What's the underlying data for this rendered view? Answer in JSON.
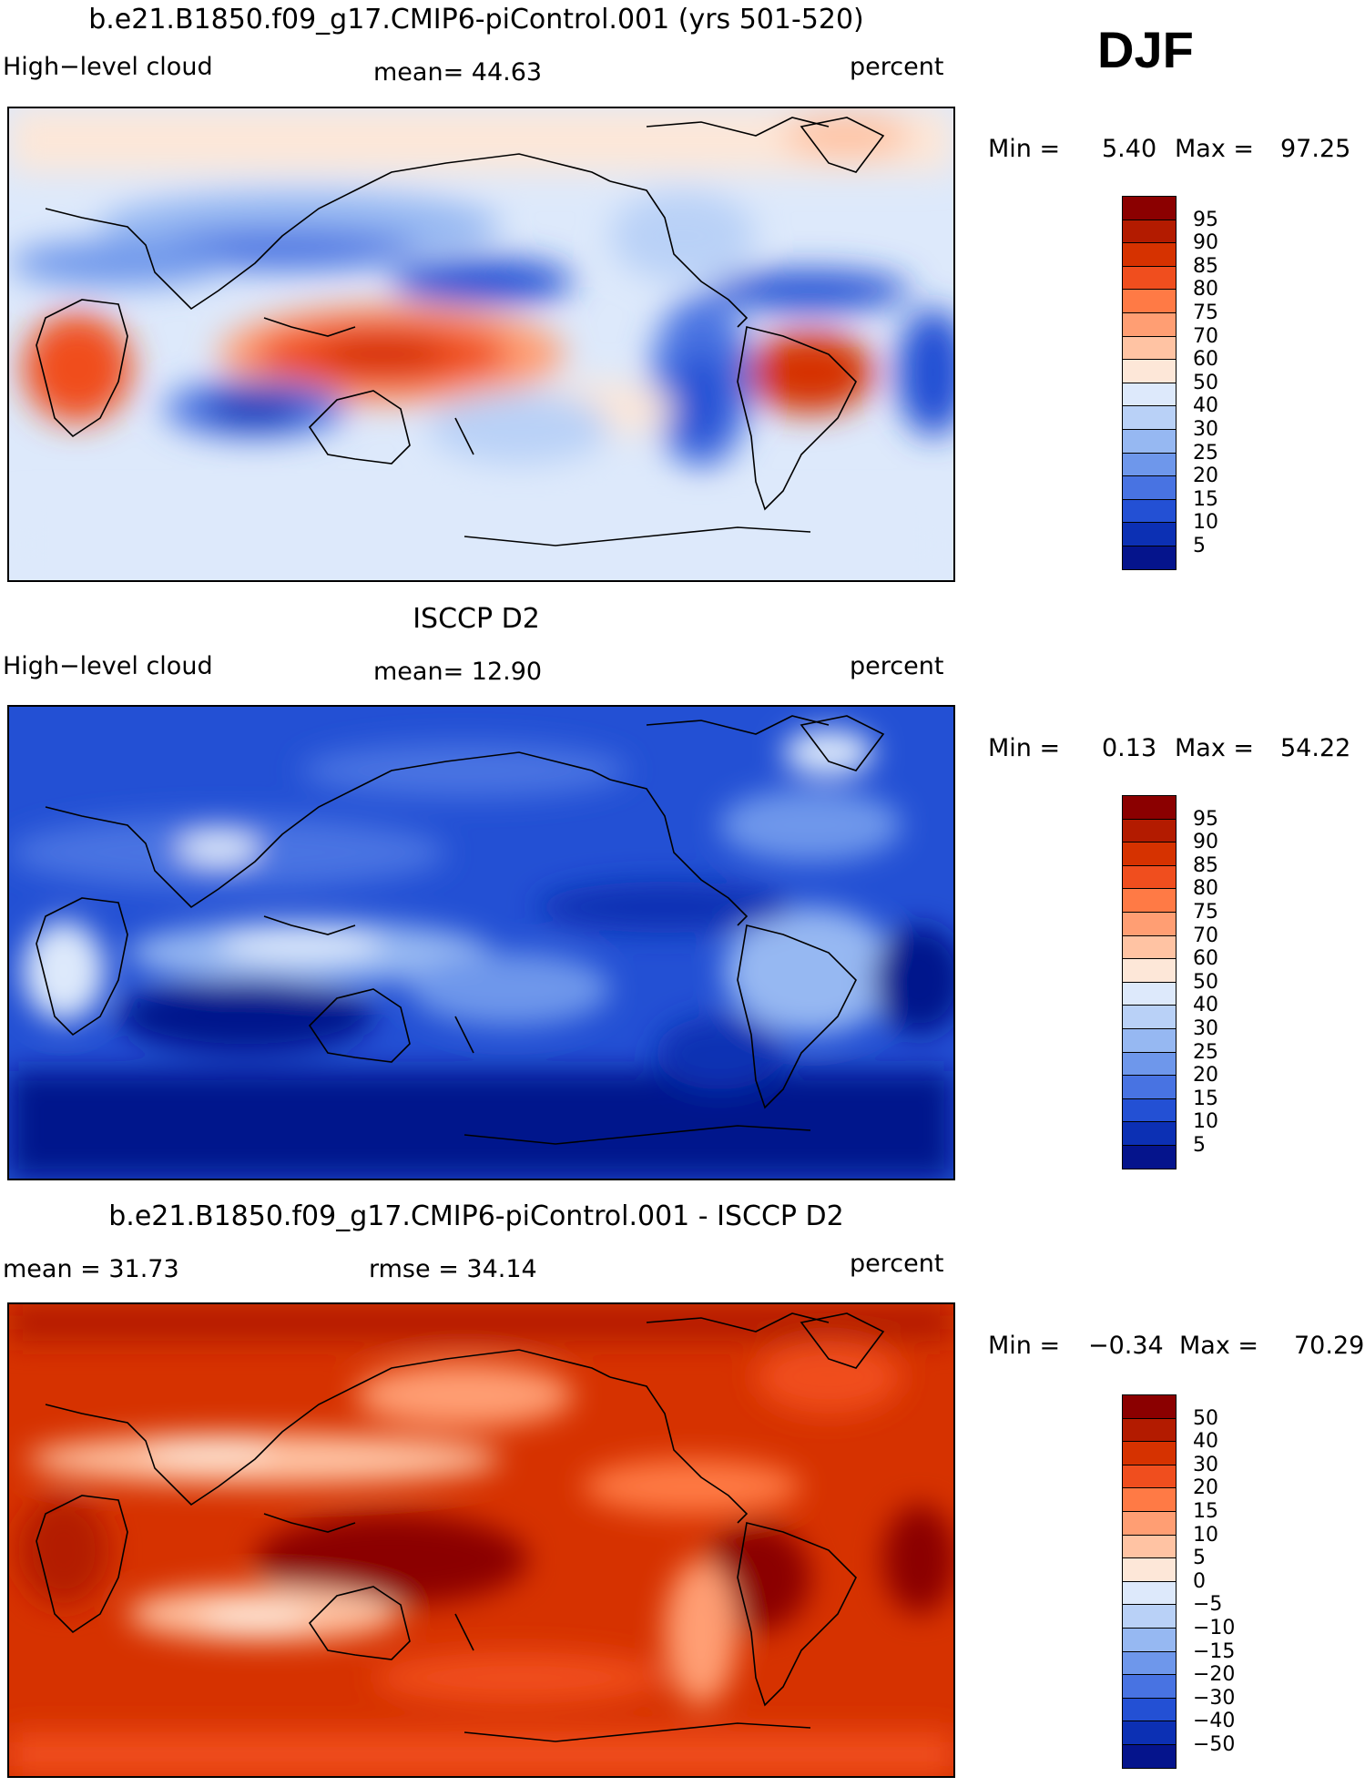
{
  "season": "DJF",
  "panels": [
    {
      "title": "b.e21.B1850.f09_g17.CMIP6-piControl.001 (yrs 501-520)",
      "left_label": "High−level cloud",
      "center_label": "mean=   44.63",
      "right_label": "percent",
      "min_label": "Min =",
      "min_value": "5.40",
      "max_label": "Max =",
      "max_value": "97.25",
      "legend_labels": [
        "95",
        "90",
        "85",
        "80",
        "75",
        "70",
        "60",
        "50",
        "40",
        "30",
        "25",
        "20",
        "15",
        "10",
        "5"
      ],
      "legend_colors": [
        "#8b0000",
        "#b31b00",
        "#d63200",
        "#f04e1e",
        "#ff7a45",
        "#ff9e73",
        "#ffc3a3",
        "#fde7d8",
        "#dde9fb",
        "#b9d1f7",
        "#96b8f2",
        "#6e97eb",
        "#4873e2",
        "#2350d4",
        "#0c30b4",
        "#05148c"
      ]
    },
    {
      "title": "ISCCP D2",
      "left_label": "High−level cloud",
      "center_label": "mean=   12.90",
      "right_label": "percent",
      "min_label": "Min =",
      "min_value": "0.13",
      "max_label": "Max =",
      "max_value": "54.22",
      "legend_labels": [
        "95",
        "90",
        "85",
        "80",
        "75",
        "70",
        "60",
        "50",
        "40",
        "30",
        "25",
        "20",
        "15",
        "10",
        "5"
      ],
      "legend_colors": [
        "#8b0000",
        "#b31b00",
        "#d63200",
        "#f04e1e",
        "#ff7a45",
        "#ff9e73",
        "#ffc3a3",
        "#fde7d8",
        "#dde9fb",
        "#b9d1f7",
        "#96b8f2",
        "#6e97eb",
        "#4873e2",
        "#2350d4",
        "#0c30b4",
        "#05148c"
      ]
    },
    {
      "title": "b.e21.B1850.f09_g17.CMIP6-piControl.001 - ISCCP D2",
      "left_label": "mean =   31.73",
      "center_label": "rmse =   34.14",
      "right_label": "percent",
      "min_label": "Min =",
      "min_value": "−0.34",
      "max_label": "Max =",
      "max_value": "70.29",
      "legend_labels": [
        "50",
        "40",
        "30",
        "20",
        "15",
        "10",
        "5",
        "0",
        "−5",
        "−10",
        "−15",
        "−20",
        "−30",
        "−40",
        "−50"
      ],
      "legend_colors": [
        "#8b0000",
        "#b31b00",
        "#d63200",
        "#f04e1e",
        "#ff7a45",
        "#ff9e73",
        "#ffc3a3",
        "#fde7d8",
        "#dde9fb",
        "#b9d1f7",
        "#96b8f2",
        "#6e97eb",
        "#4873e2",
        "#2350d4",
        "#0c30b4",
        "#05148c"
      ]
    }
  ]
}
